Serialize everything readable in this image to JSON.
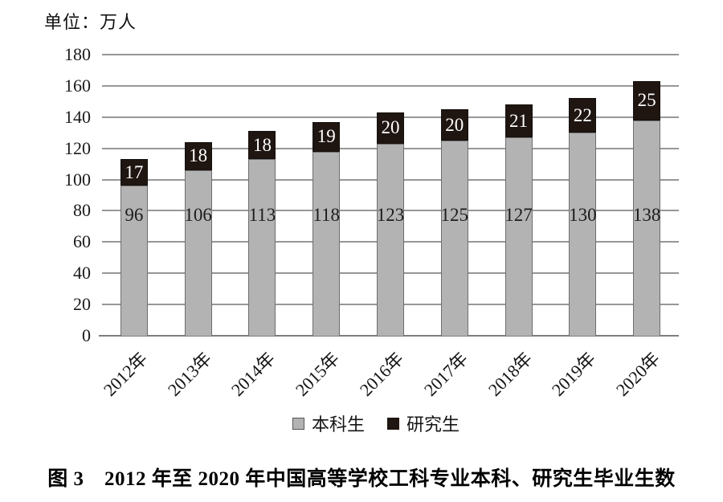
{
  "unit_label": "单位：万人",
  "caption": "图 3　2012 年至 2020 年中国高等学校工科专业本科、研究生毕业生数",
  "legend": {
    "undergrad": "本科生",
    "graduate": "研究生"
  },
  "colors": {
    "undergrad_fill": "#b3b3b3",
    "graduate_fill": "#1f1511",
    "gridline": "#979797",
    "axis_line": "#7e7e7e"
  },
  "chart_data": {
    "type": "bar",
    "stacked": true,
    "title": "图 3　2012 年至 2020 年中国高等学校工科专业本科、研究生毕业生数",
    "unit": "单位：万人",
    "categories": [
      "2012年",
      "2013年",
      "2014年",
      "2015年",
      "2016年",
      "2017年",
      "2018年",
      "2019年",
      "2020年"
    ],
    "series": [
      {
        "name": "本科生",
        "values": [
          96,
          106,
          113,
          118,
          123,
          125,
          127,
          130,
          138
        ],
        "color": "#b3b3b3"
      },
      {
        "name": "研究生",
        "values": [
          17,
          18,
          18,
          19,
          20,
          20,
          21,
          22,
          25
        ],
        "color": "#1f1511"
      }
    ],
    "ylabel": "万人",
    "xlabel": "",
    "ylim": [
      0,
      180
    ],
    "ytick_step": 20,
    "grid": true,
    "legend_position": "bottom"
  }
}
